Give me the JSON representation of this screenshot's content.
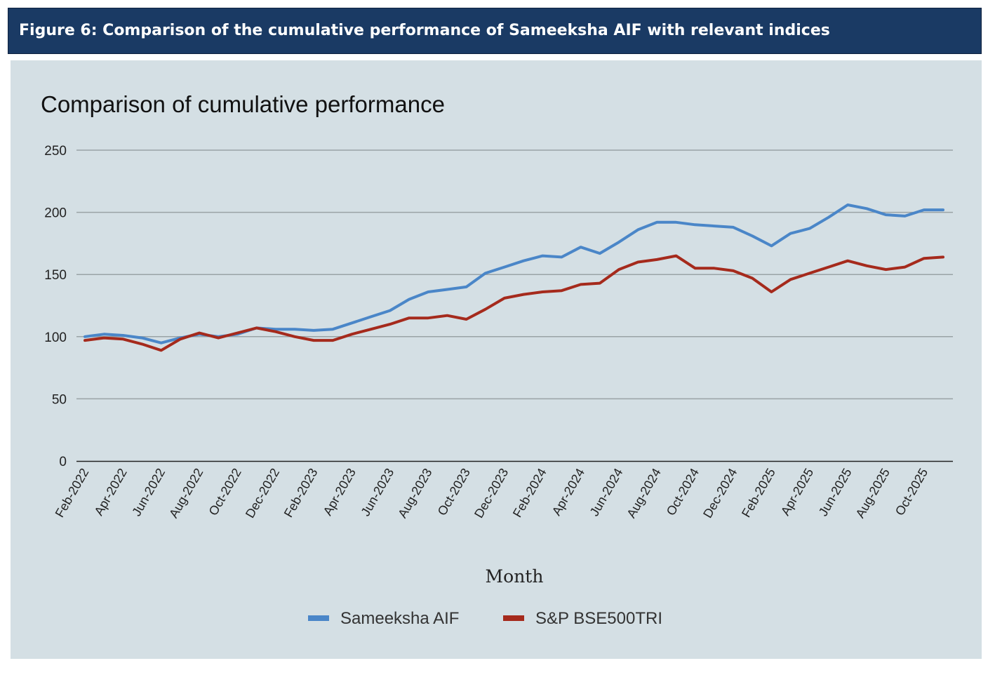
{
  "figure": {
    "caption": "Figure 6: Comparison of the cumulative performance of Sameeksha AIF with relevant indices"
  },
  "colors": {
    "header_bg": "#1a3a64",
    "panel_bg": "#d4dfe4",
    "series_1": "#4a86c8",
    "series_2": "#a52a1c",
    "gridline": "#9aa3a6"
  },
  "chart_data": {
    "type": "line",
    "title": "Comparison of cumulative performance",
    "xlabel": "Month",
    "ylabel": "",
    "ylim": [
      0,
      250
    ],
    "yticks": [
      0,
      50,
      100,
      150,
      200,
      250
    ],
    "grid": true,
    "legend_position": "bottom",
    "x": [
      "Feb-2022",
      "Mar-2022",
      "Apr-2022",
      "May-2022",
      "Jun-2022",
      "Jul-2022",
      "Aug-2022",
      "Sep-2022",
      "Oct-2022",
      "Nov-2022",
      "Dec-2022",
      "Jan-2023",
      "Feb-2023",
      "Mar-2023",
      "Apr-2023",
      "May-2023",
      "Jun-2023",
      "Jul-2023",
      "Aug-2023",
      "Sep-2023",
      "Oct-2023",
      "Nov-2023",
      "Dec-2023",
      "Jan-2024",
      "Feb-2024",
      "Mar-2024",
      "Apr-2024",
      "May-2024",
      "Jun-2024",
      "Jul-2024",
      "Aug-2024",
      "Sep-2024",
      "Oct-2024",
      "Nov-2024",
      "Dec-2024",
      "Jan-2025",
      "Feb-2025",
      "Mar-2025",
      "Apr-2025",
      "May-2025",
      "Jun-2025",
      "Jul-2025",
      "Aug-2025",
      "Sep-2025",
      "Oct-2025",
      "Nov-2025"
    ],
    "xtick_labels": [
      "Feb-2022",
      "Apr-2022",
      "Jun-2022",
      "Aug-2022",
      "Oct-2022",
      "Dec-2022",
      "Feb-2023",
      "Apr-2023",
      "Jun-2023",
      "Aug-2023",
      "Oct-2023",
      "Dec-2023",
      "Feb-2024",
      "Apr-2024",
      "Jun-2024",
      "Aug-2024",
      "Oct-2024",
      "Dec-2024",
      "Feb-2025",
      "Apr-2025",
      "Jun-2025",
      "Aug-2025",
      "Oct-2025"
    ],
    "series": [
      {
        "name": "Sameeksha AIF",
        "color": "#4a86c8",
        "values": [
          100,
          102,
          101,
          99,
          95,
          99,
          102,
          100,
          102,
          107,
          106,
          106,
          105,
          106,
          111,
          116,
          121,
          130,
          136,
          138,
          140,
          151,
          156,
          161,
          165,
          164,
          172,
          167,
          176,
          186,
          192,
          192,
          190,
          189,
          188,
          181,
          173,
          183,
          187,
          196,
          206,
          203,
          198,
          197,
          202,
          202
        ]
      },
      {
        "name": "S&P BSE500TRI",
        "color": "#a52a1c",
        "values": [
          97,
          99,
          98,
          94,
          89,
          98,
          103,
          99,
          103,
          107,
          104,
          100,
          97,
          97,
          102,
          106,
          110,
          115,
          115,
          117,
          114,
          122,
          131,
          134,
          136,
          137,
          142,
          143,
          154,
          160,
          162,
          165,
          155,
          155,
          153,
          147,
          136,
          146,
          151,
          156,
          161,
          157,
          154,
          156,
          163,
          164
        ]
      }
    ]
  }
}
